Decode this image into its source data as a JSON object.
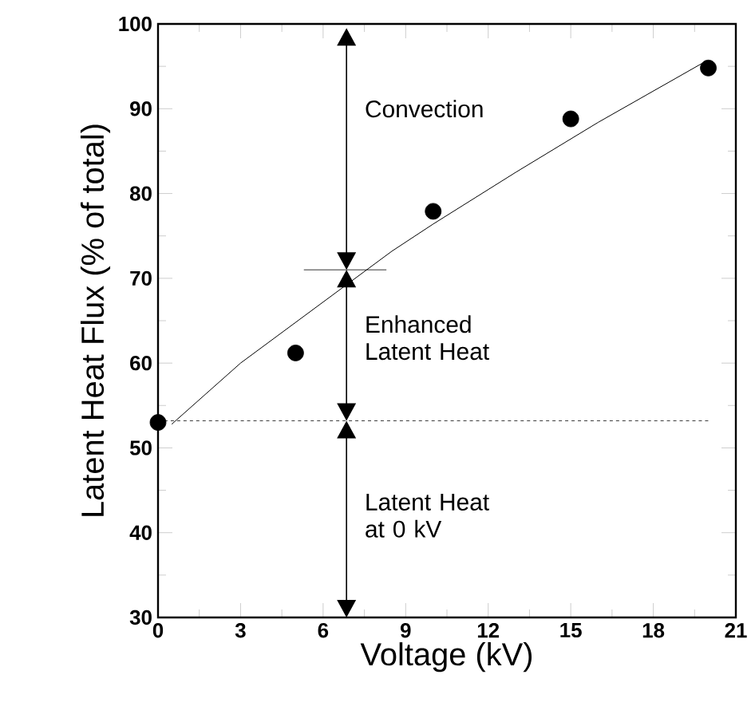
{
  "chart_data": {
    "type": "scatter",
    "xlabel": "Voltage (kV)",
    "ylabel": "Latent Heat Flux (% of total)",
    "x": [
      0,
      5,
      10,
      15,
      20
    ],
    "series": [
      {
        "color": "#000000",
        "marker": "circle",
        "values": [
          53.0,
          61.2,
          77.9,
          88.8,
          94.8
        ]
      },
      {
        "type": "line",
        "color": "#000000",
        "marker": "none",
        "x": [
          0.5,
          3,
          8.5,
          10,
          13,
          16,
          19.8
        ],
        "values": [
          52.8,
          60,
          73.2,
          76.4,
          82.5,
          88.4,
          95.4
        ]
      }
    ],
    "xlim": [
      0,
      21
    ],
    "xticks": [
      0,
      3,
      6,
      9,
      12,
      15,
      18,
      21
    ],
    "ylim": [
      30,
      100
    ],
    "yticks": [
      30,
      40,
      50,
      60,
      70,
      80,
      90,
      100
    ],
    "ref_lines": [
      {
        "axis": "y",
        "value": 53.2,
        "line_style": "dashed",
        "color": "#000000"
      }
    ],
    "annotations": [
      "Convection",
      "Enhanced Latent Heat",
      "Latent Heat at 0 kV"
    ],
    "grid": false
  }
}
